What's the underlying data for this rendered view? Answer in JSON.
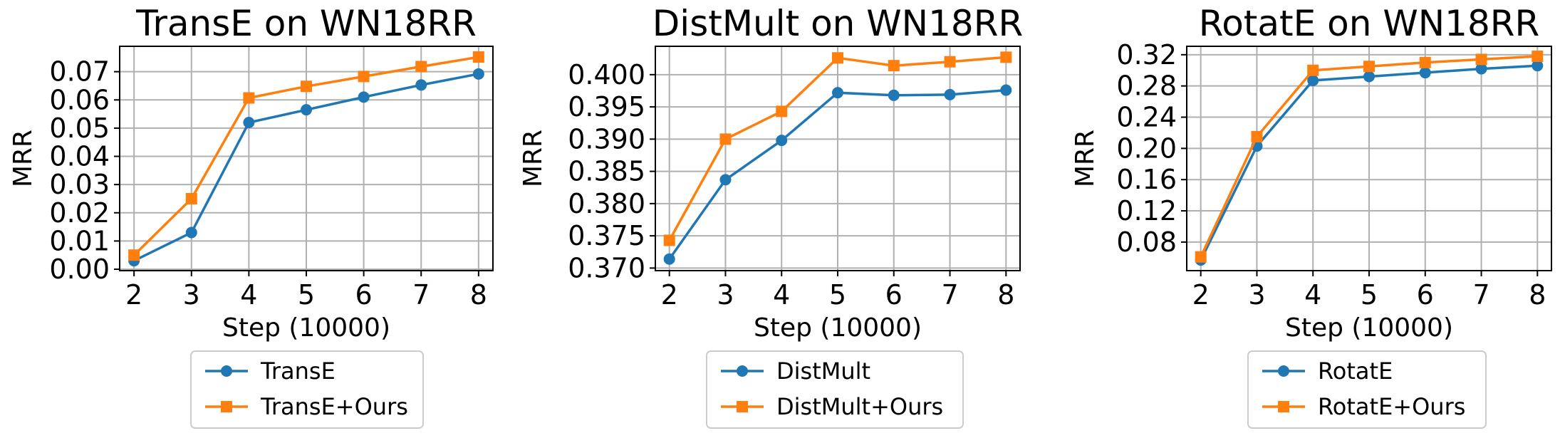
{
  "chart_data": [
    {
      "type": "line",
      "title": "TransE on WN18RR",
      "xlabel": "Step (10000)",
      "ylabel": "MRR",
      "x": [
        2,
        3,
        4,
        5,
        6,
        7,
        8
      ],
      "xlim": [
        1.75,
        8.25
      ],
      "ylim": [
        -0.0005,
        0.079
      ],
      "yticks": [
        "0.00",
        "0.01",
        "0.02",
        "0.03",
        "0.04",
        "0.05",
        "0.06",
        "0.07"
      ],
      "ytick_values": [
        0.0,
        0.01,
        0.02,
        0.03,
        0.04,
        0.05,
        0.06,
        0.07
      ],
      "grid": true,
      "legend_position": "below",
      "series": [
        {
          "name": "TransE",
          "color": "#1f77b4",
          "marker": "circle",
          "values": [
            0.003,
            0.013,
            0.052,
            0.0565,
            0.061,
            0.0653,
            0.0692
          ]
        },
        {
          "name": "TransE+Ours",
          "color": "#ff7f0e",
          "marker": "square",
          "values": [
            0.005,
            0.025,
            0.0607,
            0.0648,
            0.0683,
            0.0718,
            0.0752
          ]
        }
      ]
    },
    {
      "type": "line",
      "title": "DistMult on WN18RR",
      "xlabel": "Step (10000)",
      "ylabel": "MRR",
      "x": [
        2,
        3,
        4,
        5,
        6,
        7,
        8
      ],
      "xlim": [
        1.75,
        8.25
      ],
      "ylim": [
        0.3696,
        0.4044
      ],
      "yticks": [
        "0.370",
        "0.375",
        "0.380",
        "0.385",
        "0.390",
        "0.395",
        "0.400"
      ],
      "ytick_values": [
        0.37,
        0.375,
        0.38,
        0.385,
        0.39,
        0.395,
        0.4
      ],
      "grid": true,
      "legend_position": "below",
      "series": [
        {
          "name": "DistMult",
          "color": "#1f77b4",
          "marker": "circle",
          "values": [
            0.3714,
            0.3837,
            0.3898,
            0.3972,
            0.3968,
            0.3969,
            0.3976
          ]
        },
        {
          "name": "DistMult+Ours",
          "color": "#ff7f0e",
          "marker": "square",
          "values": [
            0.3743,
            0.39,
            0.3943,
            0.4026,
            0.4014,
            0.402,
            0.4027
          ]
        }
      ]
    },
    {
      "type": "line",
      "title": "RotatE on WN18RR",
      "xlabel": "Step (10000)",
      "ylabel": "MRR",
      "x": [
        2,
        3,
        4,
        5,
        6,
        7,
        8
      ],
      "xlim": [
        1.75,
        8.25
      ],
      "ylim": [
        0.0434,
        0.3308
      ],
      "yticks": [
        "0.08",
        "0.12",
        "0.16",
        "0.20",
        "0.24",
        "0.28",
        "0.32"
      ],
      "ytick_values": [
        0.08,
        0.12,
        0.16,
        0.2,
        0.24,
        0.28,
        0.32
      ],
      "grid": true,
      "legend_position": "below",
      "series": [
        {
          "name": "RotatE",
          "color": "#1f77b4",
          "marker": "circle",
          "values": [
            0.057,
            0.203,
            0.287,
            0.292,
            0.297,
            0.302,
            0.306
          ]
        },
        {
          "name": "RotatE+Ours",
          "color": "#ff7f0e",
          "marker": "square",
          "values": [
            0.061,
            0.215,
            0.3,
            0.305,
            0.31,
            0.314,
            0.318
          ]
        }
      ]
    }
  ]
}
